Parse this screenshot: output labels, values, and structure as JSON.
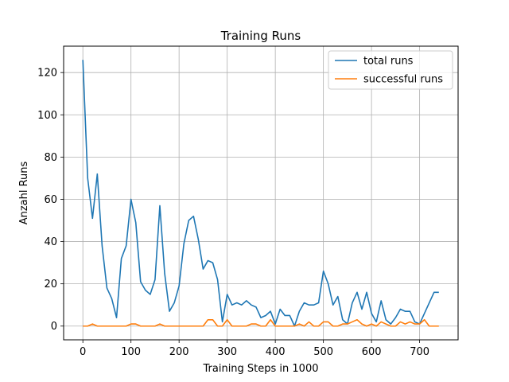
{
  "chart_data": {
    "type": "line",
    "title": "Training Runs",
    "xlabel": "Training Steps in 1000",
    "ylabel": "Anzahl Runs",
    "xlim": [
      -40,
      780
    ],
    "ylim": [
      -6.5,
      132.5
    ],
    "xticks": [
      0,
      100,
      200,
      300,
      400,
      500,
      600,
      700
    ],
    "yticks": [
      0,
      20,
      40,
      60,
      80,
      100,
      120
    ],
    "grid": true,
    "legend_position": "top-right",
    "series": [
      {
        "name": "total runs",
        "color": "#1f77b4",
        "x": [
          0,
          10,
          20,
          30,
          40,
          50,
          60,
          70,
          80,
          90,
          100,
          110,
          120,
          130,
          140,
          150,
          160,
          170,
          180,
          190,
          200,
          210,
          220,
          230,
          240,
          250,
          260,
          270,
          280,
          290,
          300,
          310,
          320,
          330,
          340,
          350,
          360,
          370,
          380,
          390,
          400,
          410,
          420,
          430,
          440,
          450,
          460,
          470,
          480,
          490,
          500,
          510,
          520,
          530,
          540,
          550,
          560,
          570,
          580,
          590,
          600,
          610,
          620,
          630,
          640,
          650,
          660,
          670,
          680,
          690,
          700,
          710,
          720,
          730,
          740
        ],
        "values": [
          126,
          70,
          51,
          72,
          38,
          18,
          13,
          4,
          32,
          38,
          60,
          49,
          21,
          17,
          15,
          22,
          57,
          25,
          7,
          11,
          19,
          39,
          50,
          52,
          41,
          27,
          31,
          30,
          22,
          2,
          15,
          10,
          11,
          10,
          12,
          10,
          9,
          4,
          5,
          7,
          1,
          8,
          5,
          5,
          0,
          7,
          11,
          10,
          10,
          11,
          26,
          20,
          10,
          14,
          3,
          1,
          11,
          16,
          8,
          16,
          6,
          2,
          12,
          3,
          1,
          4,
          8,
          7,
          7,
          2,
          1,
          6,
          11,
          16,
          16
        ]
      },
      {
        "name": "successful runs",
        "color": "#ff7f0e",
        "x": [
          0,
          10,
          20,
          30,
          40,
          50,
          60,
          70,
          80,
          90,
          100,
          110,
          120,
          130,
          140,
          150,
          160,
          170,
          180,
          190,
          200,
          210,
          220,
          230,
          240,
          250,
          260,
          270,
          280,
          290,
          300,
          310,
          320,
          330,
          340,
          350,
          360,
          370,
          380,
          390,
          400,
          410,
          420,
          430,
          440,
          450,
          460,
          470,
          480,
          490,
          500,
          510,
          520,
          530,
          540,
          550,
          560,
          570,
          580,
          590,
          600,
          610,
          620,
          630,
          640,
          650,
          660,
          670,
          680,
          690,
          700,
          710,
          720,
          730,
          740
        ],
        "values": [
          0,
          0,
          1,
          0,
          0,
          0,
          0,
          0,
          0,
          0,
          1,
          1,
          0,
          0,
          0,
          0,
          1,
          0,
          0,
          0,
          0,
          0,
          0,
          0,
          0,
          0,
          3,
          3,
          0,
          0,
          3,
          0,
          0,
          0,
          0,
          1,
          1,
          0,
          0,
          3,
          0,
          0,
          0,
          0,
          0,
          1,
          0,
          2,
          0,
          0,
          2,
          2,
          0,
          0,
          1,
          1,
          2,
          3,
          1,
          0,
          1,
          0,
          2,
          1,
          0,
          0,
          2,
          1,
          2,
          1,
          1,
          3,
          0,
          0,
          0
        ]
      }
    ]
  }
}
